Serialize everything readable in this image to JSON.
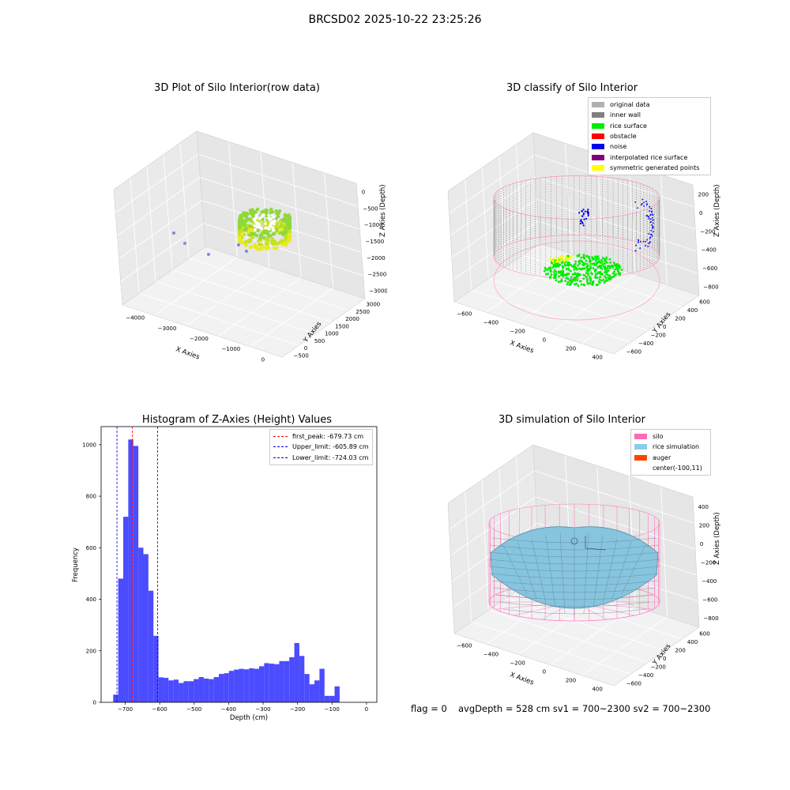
{
  "page": {
    "suptitle": "BRCSD02 2025-10-22 23:25:26"
  },
  "panels": {
    "p1": {
      "title": "3D Plot of Silo Interior(row data)",
      "xlabel": "X Axies",
      "ylabel": "Y Axies",
      "zlabel": "Z Axies (Depth)",
      "xticks": [
        "−4000",
        "−3000",
        "−2000",
        "−1000",
        "0"
      ],
      "yticks": [
        "−500",
        "0",
        "500",
        "1000",
        "1500",
        "2000",
        "2500",
        "3000"
      ],
      "zticks": [
        "0",
        "−500",
        "−1000",
        "−1500",
        "−2000",
        "−2500",
        "−3000"
      ]
    },
    "p2": {
      "title": "3D classify of Silo Interior",
      "xlabel": "X Axies",
      "ylabel": "Y Axies",
      "zlabel": "Z Axies (Depth)",
      "xticks": [
        "−600",
        "−400",
        "−200",
        "0",
        "200",
        "400"
      ],
      "yticks": [
        "−600",
        "−400",
        "−200",
        "0",
        "200",
        "400",
        "600"
      ],
      "zticks": [
        "200",
        "0",
        "−200",
        "−400",
        "−600",
        "−800"
      ],
      "legend": [
        {
          "label": "original data",
          "color": "#b0b0b0"
        },
        {
          "label": "inner wall",
          "color": "#808080"
        },
        {
          "label": "rice surface",
          "color": "#00ee00"
        },
        {
          "label": "obstacle",
          "color": "#ff0000"
        },
        {
          "label": "noise",
          "color": "#0000ee"
        },
        {
          "label": "interpolated rice surface",
          "color": "#800080"
        },
        {
          "label": "symmetric generated points",
          "color": "#ffff00"
        }
      ]
    },
    "p4": {
      "title": "3D simulation of Silo Interior",
      "xlabel": "X Axies",
      "ylabel": "Y Axies",
      "zlabel": "Z Axies (Depth)",
      "xticks": [
        "−600",
        "−400",
        "−200",
        "0",
        "200",
        "400"
      ],
      "yticks": [
        "−600",
        "−400",
        "−200",
        "0",
        "200",
        "400",
        "600"
      ],
      "zticks": [
        "400",
        "200",
        "0",
        "−200",
        "−400",
        "−600",
        "−800"
      ],
      "legend": [
        {
          "label": "silo",
          "color": "#ff69b4"
        },
        {
          "label": "rice simulation",
          "color": "#87ceeb"
        },
        {
          "label": "auger",
          "color": "#ff4500"
        },
        {
          "label": "center(-100,11)",
          "color": ""
        }
      ]
    }
  },
  "footer": {
    "flag": "flag = 0",
    "avg": "avgDepth = 528 cm  sv1 = 700~2300  sv2 = 700~2300"
  },
  "chart_data": [
    {
      "type": "scatter",
      "title": "3D Plot of Silo Interior(row data)",
      "xlabel": "X Axies",
      "ylabel": "Y Axies",
      "zlabel": "Z Axies (Depth)",
      "xlim": [
        -4000,
        500
      ],
      "ylim": [
        -700,
        3200
      ],
      "zlim": [
        -3300,
        200
      ]
    },
    {
      "type": "scatter",
      "title": "3D classify of Silo Interior",
      "xlabel": "X Axies",
      "ylabel": "Y Axies",
      "zlabel": "Z Axies (Depth)",
      "xlim": [
        -700,
        500
      ],
      "ylim": [
        -650,
        650
      ],
      "zlim": [
        -900,
        250
      ],
      "legend_position": "top-right",
      "series": [
        {
          "name": "original data"
        },
        {
          "name": "inner wall"
        },
        {
          "name": "rice surface"
        },
        {
          "name": "obstacle"
        },
        {
          "name": "noise"
        },
        {
          "name": "interpolated rice surface"
        },
        {
          "name": "symmetric generated points"
        }
      ]
    },
    {
      "type": "bar",
      "title": "Histogram of Z-Axies (Height) Values",
      "xlabel": "Depth (cm)",
      "ylabel": "Frequency",
      "xlim": [
        -770,
        30
      ],
      "ylim": [
        0,
        1070
      ],
      "xticks": [
        -700,
        -600,
        -500,
        -400,
        -300,
        -200,
        -100,
        0
      ],
      "yticks": [
        0,
        200,
        400,
        600,
        800,
        1000
      ],
      "bin_start": -735,
      "bin_width": 14.6,
      "values": [
        30,
        480,
        720,
        1020,
        995,
        600,
        575,
        433,
        258,
        97,
        95,
        85,
        88,
        75,
        82,
        82,
        90,
        98,
        92,
        90,
        98,
        110,
        113,
        122,
        127,
        130,
        128,
        132,
        130,
        140,
        152,
        150,
        148,
        160,
        160,
        175,
        230,
        180,
        110,
        70,
        85,
        130,
        25,
        25,
        62
      ],
      "lines": [
        {
          "name": "first_peak: -679.73 cm",
          "x": -679.73,
          "color": "#ff0000"
        },
        {
          "name": "Upper_limit: -605.89 cm",
          "x": -605.89,
          "color": "#0000cc"
        },
        {
          "name": "Lower_limit: -724.03 cm",
          "x": -724.03,
          "color": "#0000cc"
        }
      ],
      "bar_color": "#4b4bff",
      "legend_position": "top-right"
    },
    {
      "type": "area",
      "title": "3D simulation of Silo Interior",
      "xlabel": "X Axies",
      "ylabel": "Y Axies",
      "zlabel": "Z Axies (Depth)",
      "xlim": [
        -700,
        500
      ],
      "ylim": [
        -650,
        650
      ],
      "zlim": [
        -900,
        450
      ],
      "legend_position": "top-right",
      "series": [
        {
          "name": "silo"
        },
        {
          "name": "rice simulation"
        },
        {
          "name": "auger"
        },
        {
          "name": "center(-100,11)"
        }
      ]
    }
  ]
}
